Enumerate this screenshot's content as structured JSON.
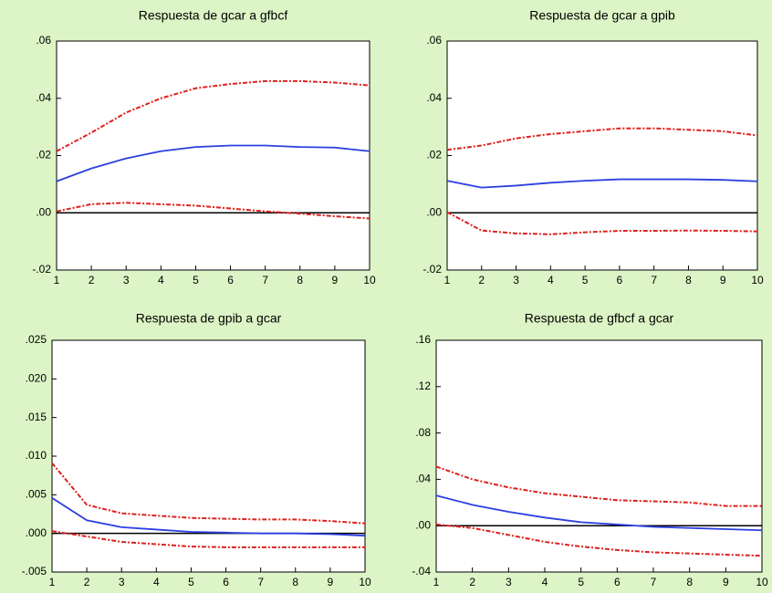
{
  "chart_data": [
    {
      "type": "line",
      "title": "Respuesta de gcar a gfbcf",
      "x": [
        1,
        2,
        3,
        4,
        5,
        6,
        7,
        8,
        9,
        10
      ],
      "xlim": [
        1,
        10
      ],
      "xticks": [
        1,
        2,
        3,
        4,
        5,
        6,
        7,
        8,
        9,
        10
      ],
      "ylim": [
        -0.02,
        0.06
      ],
      "yticks": [
        {
          "value": -0.02,
          "label": "-.02"
        },
        {
          "value": 0,
          "label": ".00"
        },
        {
          "value": 0.02,
          "label": ".02"
        },
        {
          "value": 0.04,
          "label": ".04"
        },
        {
          "value": 0.06,
          "label": ".06"
        }
      ],
      "series": [
        {
          "color": "#2b3fe0",
          "line_style": "solid",
          "values": [
            0.011,
            0.0155,
            0.019,
            0.0215,
            0.023,
            0.0235,
            0.0235,
            0.023,
            0.0228,
            0.0215
          ]
        },
        {
          "color": "#e0201c",
          "line_style": "dashed",
          "values": [
            0.0215,
            0.028,
            0.035,
            0.04,
            0.0435,
            0.045,
            0.046,
            0.046,
            0.0455,
            0.0445
          ]
        },
        {
          "color": "#e0201c",
          "line_style": "dashed",
          "values": [
            0.0005,
            0.003,
            0.0035,
            0.003,
            0.0025,
            0.0015,
            0.0005,
            -0.0003,
            -0.0012,
            -0.002
          ]
        }
      ]
    },
    {
      "type": "line",
      "title": "Respuesta de gcar a gpib",
      "x": [
        1,
        2,
        3,
        4,
        5,
        6,
        7,
        8,
        9,
        10
      ],
      "xlim": [
        1,
        10
      ],
      "xticks": [
        1,
        2,
        3,
        4,
        5,
        6,
        7,
        8,
        9,
        10
      ],
      "ylim": [
        -0.02,
        0.06
      ],
      "yticks": [
        {
          "value": -0.02,
          "label": "-.02"
        },
        {
          "value": 0,
          "label": ".00"
        },
        {
          "value": 0.02,
          "label": ".02"
        },
        {
          "value": 0.04,
          "label": ".04"
        },
        {
          "value": 0.06,
          "label": ".06"
        }
      ],
      "series": [
        {
          "color": "#2b3fe0",
          "line_style": "solid",
          "values": [
            0.0112,
            0.0088,
            0.0095,
            0.0105,
            0.0112,
            0.0117,
            0.0117,
            0.0117,
            0.0115,
            0.011
          ]
        },
        {
          "color": "#e0201c",
          "line_style": "dashed",
          "values": [
            0.022,
            0.0235,
            0.026,
            0.0275,
            0.0285,
            0.0295,
            0.0295,
            0.029,
            0.0285,
            0.027
          ]
        },
        {
          "color": "#e0201c",
          "line_style": "dashed",
          "values": [
            0.0002,
            -0.0062,
            -0.0072,
            -0.0075,
            -0.0068,
            -0.0063,
            -0.0063,
            -0.0062,
            -0.0063,
            -0.0065
          ]
        }
      ]
    },
    {
      "type": "line",
      "title": "Respuesta de gpib a gcar",
      "x": [
        1,
        2,
        3,
        4,
        5,
        6,
        7,
        8,
        9,
        10
      ],
      "xlim": [
        1,
        10
      ],
      "xticks": [
        1,
        2,
        3,
        4,
        5,
        6,
        7,
        8,
        9,
        10
      ],
      "ylim": [
        -0.005,
        0.025
      ],
      "yticks": [
        {
          "value": -0.005,
          "label": "-.005"
        },
        {
          "value": 0,
          "label": ".000"
        },
        {
          "value": 0.005,
          "label": ".005"
        },
        {
          "value": 0.01,
          "label": ".010"
        },
        {
          "value": 0.015,
          "label": ".015"
        },
        {
          "value": 0.02,
          "label": ".020"
        },
        {
          "value": 0.025,
          "label": ".025"
        }
      ],
      "series": [
        {
          "color": "#2b3fe0",
          "line_style": "solid",
          "values": [
            0.0046,
            0.0017,
            0.0008,
            0.0005,
            0.0002,
            0.0001,
            0,
            0,
            -0.0001,
            -0.0003
          ]
        },
        {
          "color": "#e0201c",
          "line_style": "dashed",
          "values": [
            0.0091,
            0.0037,
            0.0026,
            0.0023,
            0.002,
            0.0019,
            0.0018,
            0.0018,
            0.0016,
            0.0013
          ]
        },
        {
          "color": "#e0201c",
          "line_style": "dashed",
          "values": [
            0.0003,
            -0.0004,
            -0.0011,
            -0.0014,
            -0.0017,
            -0.0018,
            -0.0018,
            -0.0018,
            -0.0018,
            -0.0018
          ]
        }
      ]
    },
    {
      "type": "line",
      "title": "Respuesta de gfbcf a gcar",
      "x": [
        1,
        2,
        3,
        4,
        5,
        6,
        7,
        8,
        9,
        10
      ],
      "xlim": [
        1,
        10
      ],
      "xticks": [
        1,
        2,
        3,
        4,
        5,
        6,
        7,
        8,
        9,
        10
      ],
      "ylim": [
        -0.04,
        0.16
      ],
      "yticks": [
        {
          "value": -0.04,
          "label": "-.04"
        },
        {
          "value": 0,
          "label": ".00"
        },
        {
          "value": 0.04,
          "label": ".04"
        },
        {
          "value": 0.08,
          "label": ".08"
        },
        {
          "value": 0.12,
          "label": ".12"
        },
        {
          "value": 0.16,
          "label": ".16"
        }
      ],
      "series": [
        {
          "color": "#2b3fe0",
          "line_style": "solid",
          "values": [
            0.026,
            0.018,
            0.012,
            0.007,
            0.003,
            0.001,
            -0.001,
            -0.002,
            -0.003,
            -0.004
          ]
        },
        {
          "color": "#e0201c",
          "line_style": "dashed",
          "values": [
            0.051,
            0.04,
            0.033,
            0.028,
            0.025,
            0.022,
            0.021,
            0.02,
            0.017,
            0.017
          ]
        },
        {
          "color": "#e0201c",
          "line_style": "dashed",
          "values": [
            0.001,
            -0.002,
            -0.008,
            -0.014,
            -0.018,
            -0.021,
            -0.023,
            -0.024,
            -0.025,
            -0.026
          ]
        }
      ]
    }
  ]
}
